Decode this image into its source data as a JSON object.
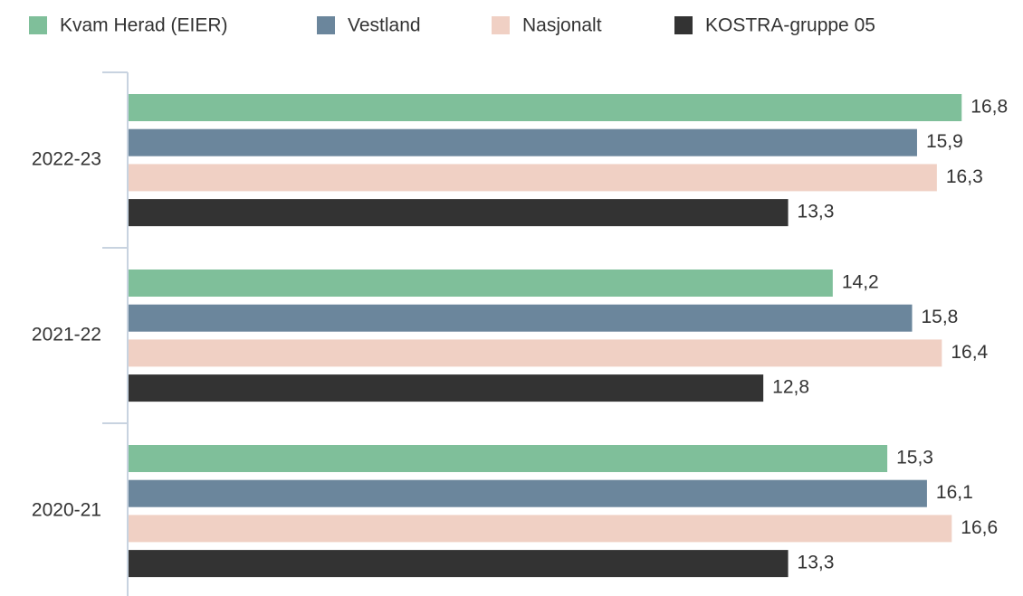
{
  "chart_data": {
    "type": "bar",
    "orientation": "horizontal",
    "categories": [
      "2022-23",
      "2021-22",
      "2020-21"
    ],
    "series": [
      {
        "name": "Kvam Herad (EIER)",
        "color": "#7fbf9a",
        "values": [
          16.8,
          14.2,
          15.3
        ],
        "value_labels": [
          "16,8",
          "14,2",
          "15,3"
        ]
      },
      {
        "name": "Vestland",
        "color": "#6b869c",
        "values": [
          15.9,
          15.8,
          16.1
        ],
        "value_labels": [
          "15,9",
          "15,8",
          "16,1"
        ]
      },
      {
        "name": "Nasjonalt",
        "color": "#f0d0c4",
        "values": [
          16.3,
          16.4,
          16.6
        ],
        "value_labels": [
          "16,3",
          "16,4",
          "16,6"
        ]
      },
      {
        "name": "KOSTRA-gruppe 05",
        "color": "#333333",
        "values": [
          13.3,
          12.8,
          13.3
        ],
        "value_labels": [
          "13,3",
          "12,8",
          "13,3"
        ]
      }
    ],
    "xlim": [
      0,
      18
    ],
    "legend": "top"
  }
}
